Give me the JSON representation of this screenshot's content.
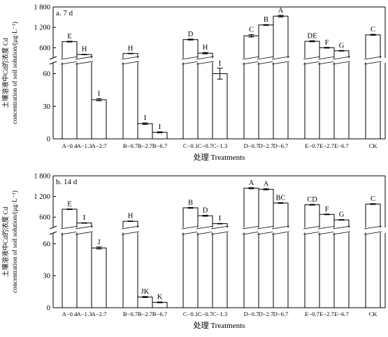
{
  "chart_data": [
    {
      "type": "bar",
      "title": "a. 7 d",
      "xlabel": "处理 Treatments",
      "ylabel_cn": "土壤溶液中Cd的浓度 Cd",
      "ylabel_en": "concentration of soil solution/(μg·L⁻¹)",
      "y_break": true,
      "ylim_lower": [
        0,
        70
      ],
      "ylim_upper": [
        300,
        1800
      ],
      "yticks_lower": [
        "0",
        "30",
        "60"
      ],
      "yticks_upper": [
        "600",
        "1 200",
        "1 800"
      ],
      "categories": [
        "A−0.4",
        "A−1.3",
        "A−2.7",
        "B−0.7",
        "B−2.7",
        "B−6.7",
        "C−0.1",
        "C−0.7",
        "C−1.3",
        "D−0.7",
        "D−2.7",
        "D−6.7",
        "E−0.7",
        "E−2.7",
        "E−6.7",
        "CK"
      ],
      "groups": [
        [
          0,
          1,
          2
        ],
        [
          3,
          4,
          5
        ],
        [
          6,
          7,
          8
        ],
        [
          9,
          10,
          11
        ],
        [
          12,
          13,
          14
        ],
        [
          15
        ]
      ],
      "values": [
        780,
        400,
        36,
        430,
        14,
        6,
        840,
        440,
        60,
        950,
        1270,
        1530,
        790,
        600,
        510,
        980
      ],
      "errors": [
        12,
        8,
        1,
        8,
        0.7,
        0.5,
        15,
        20,
        5,
        35,
        12,
        25,
        15,
        12,
        10,
        15
      ],
      "letters": [
        "E",
        "H",
        "I",
        "H",
        "I",
        "I",
        "D",
        "H",
        "I",
        "C",
        "B",
        "A",
        "DE",
        "F",
        "G",
        "C"
      ]
    },
    {
      "type": "bar",
      "title": "b. 14 d",
      "xlabel": "处理 Treatments",
      "ylabel_cn": "土壤溶液中Cd的浓度 Cd",
      "ylabel_en": "concentration of soil solution/(μg·L⁻¹)",
      "y_break": true,
      "ylim_lower": [
        0,
        70
      ],
      "ylim_upper": [
        300,
        1800
      ],
      "yticks_lower": [
        "0",
        "30",
        "60"
      ],
      "yticks_upper": [
        "600",
        "1 200",
        "1 800"
      ],
      "categories": [
        "A−0.4",
        "A−1.3",
        "A−2.7",
        "B−0.7",
        "B−2.7",
        "B−6.7",
        "C−0.1",
        "C−0.7",
        "C−1.3",
        "D−0.7",
        "D−2.7",
        "D−6.7",
        "E−0.7",
        "E−2.7",
        "E−6.7",
        "CK"
      ],
      "groups": [
        [
          0,
          1,
          2
        ],
        [
          3,
          4,
          5
        ],
        [
          6,
          7,
          8
        ],
        [
          9,
          10,
          11
        ],
        [
          12,
          13,
          14
        ],
        [
          15
        ]
      ],
      "values": [
        830,
        430,
        56,
        480,
        10,
        5,
        870,
        640,
        410,
        1440,
        1410,
        1010,
        960,
        680,
        520,
        980
      ],
      "errors": [
        10,
        8,
        1,
        8,
        0.5,
        0.4,
        12,
        15,
        8,
        18,
        18,
        10,
        12,
        10,
        10,
        12
      ],
      "letters": [
        "E",
        "I",
        "J",
        "H",
        "JK",
        "K",
        "B",
        "D",
        "I",
        "A",
        "A",
        "BC",
        "CD",
        "F",
        "G",
        "C"
      ]
    }
  ]
}
